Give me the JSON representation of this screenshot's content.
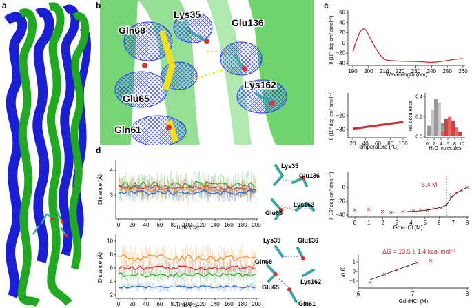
{
  "panels": {
    "a": "a",
    "b": "b",
    "c": "c",
    "d": "d"
  },
  "structure_labels": {
    "lys35": "Lys35",
    "gln68": "Gln68",
    "glu136": "Glu136",
    "glu65": "Glu65",
    "lys162": "Lys162",
    "gln61": "Gln61"
  },
  "cd_spectrum": {
    "xlabel": "Wavelength (nm)",
    "ylabel": "θ (10³ deg cm² dmol⁻¹)",
    "xticks": [
      "190",
      "200",
      "210",
      "220",
      "230",
      "240",
      "250",
      "260"
    ],
    "yticks": [
      "60",
      "40",
      "20",
      "0",
      "−20",
      "−40"
    ],
    "color": "#d42a2a"
  },
  "temperature": {
    "xlabel": "Temperature (°C)",
    "ylabel": "θ (10³ deg cm² dmol⁻¹)",
    "xticks": [
      "20",
      "40",
      "60",
      "80",
      "100"
    ],
    "yticks": [
      "−20",
      "−30"
    ]
  },
  "water_hist": {
    "ylabel": "rel. occurence",
    "xlabel": "H₂O molecules",
    "xticks": [
      "0",
      "2",
      "4",
      "6",
      "8",
      "10"
    ],
    "yticks": [
      "0.0",
      "0.2",
      "0.4"
    ]
  },
  "denaturation": {
    "xlabel": "GdnHCl (M)",
    "ylabel": "θ (10³ deg cm² dmol⁻¹)",
    "xticks": [
      "0",
      "1",
      "2",
      "3",
      "4",
      "5",
      "6",
      "7",
      "8"
    ],
    "yticks": [
      "0",
      "−20",
      "−40"
    ],
    "midpoint_label": "6.4 M"
  },
  "lnk": {
    "xlabel": "GdnHCl (M)",
    "ylabel": "ln K",
    "xticks": [
      "6",
      "7",
      "8"
    ],
    "yticks": [
      "1",
      "0",
      "−1"
    ],
    "dg_label": "ΔG = 13.5 ± 1.4 kcal mol⁻¹"
  },
  "distance_top": {
    "ylabel": "Distance (Å)",
    "xlabel": "Time (ns)",
    "xticks": [
      "0",
      "20",
      "40",
      "60",
      "80",
      "100",
      "120",
      "140",
      "160",
      "180",
      "200"
    ],
    "yticks": [
      "4",
      "3"
    ]
  },
  "distance_bottom": {
    "ylabel": "Distance (Å)",
    "xlabel": "Time (ns)",
    "xticks": [
      "0",
      "20",
      "40",
      "60",
      "80",
      "100",
      "120",
      "140",
      "160",
      "180",
      "200"
    ],
    "yticks": [
      "10",
      "8",
      "6",
      "4",
      "2"
    ]
  },
  "schematic_top": {
    "lys35": "Lys35",
    "glu136": "Glu136",
    "glu65": "Glu65",
    "lys162": "Lys162"
  },
  "schematic_bottom": {
    "lys35": "Lys35",
    "glu136": "Glu136",
    "gln68": "Gln68",
    "glu65": "Glu65",
    "lys162": "Lys162",
    "gln61": "Gln61"
  },
  "colors": {
    "helix_blue": "#1a1fd4",
    "helix_green": "#22a822",
    "density_blue": "#2a3cff",
    "bg_green": "#5ecf5e",
    "red": "#d42a2a",
    "orange": "#ff8c1a",
    "teal": "#3aa6a6"
  }
}
